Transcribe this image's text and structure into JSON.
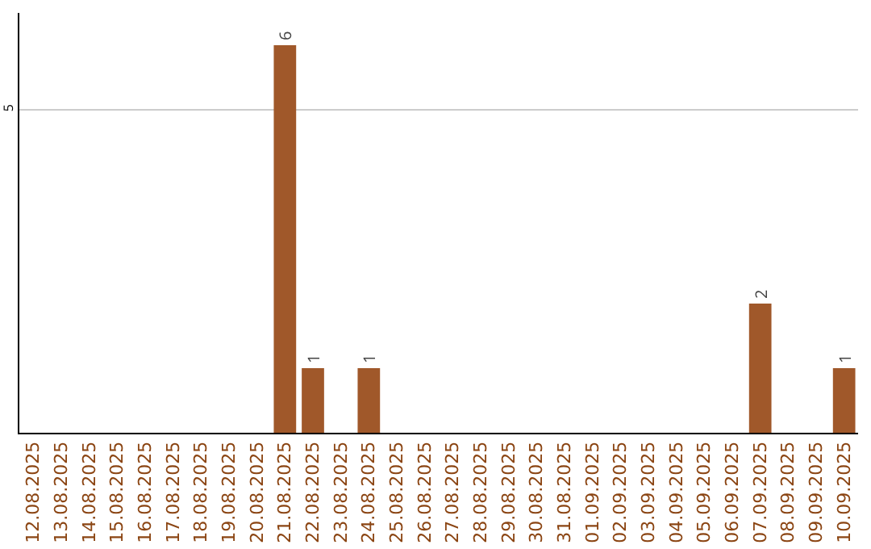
{
  "chart_data": {
    "type": "bar",
    "categories": [
      "12.08.2025",
      "13.08.2025",
      "14.08.2025",
      "15.08.2025",
      "16.08.2025",
      "17.08.2025",
      "18.08.2025",
      "19.08.2025",
      "20.08.2025",
      "21.08.2025",
      "22.08.2025",
      "23.08.2025",
      "24.08.2025",
      "25.08.2025",
      "26.08.2025",
      "27.08.2025",
      "28.08.2025",
      "29.08.2025",
      "30.08.2025",
      "31.08.2025",
      "01.09.2025",
      "02.09.2025",
      "03.09.2025",
      "04.09.2025",
      "05.09.2025",
      "06.09.2025",
      "07.09.2025",
      "08.09.2025",
      "09.09.2025",
      "10.09.2025"
    ],
    "values": [
      0,
      0,
      0,
      0,
      0,
      0,
      0,
      0,
      0,
      6,
      1,
      0,
      1,
      0,
      0,
      0,
      0,
      0,
      0,
      0,
      0,
      0,
      0,
      0,
      0,
      0,
      2,
      0,
      0,
      1
    ],
    "value_labels": [
      null,
      null,
      null,
      null,
      null,
      null,
      null,
      null,
      null,
      "6",
      "1",
      null,
      "1",
      null,
      null,
      null,
      null,
      null,
      null,
      null,
      null,
      null,
      null,
      null,
      null,
      null,
      "2",
      null,
      null,
      "1"
    ],
    "color": "#a0582a",
    "ylim": [
      0,
      6.5
    ],
    "yticks": [
      5
    ],
    "grid": "y"
  }
}
